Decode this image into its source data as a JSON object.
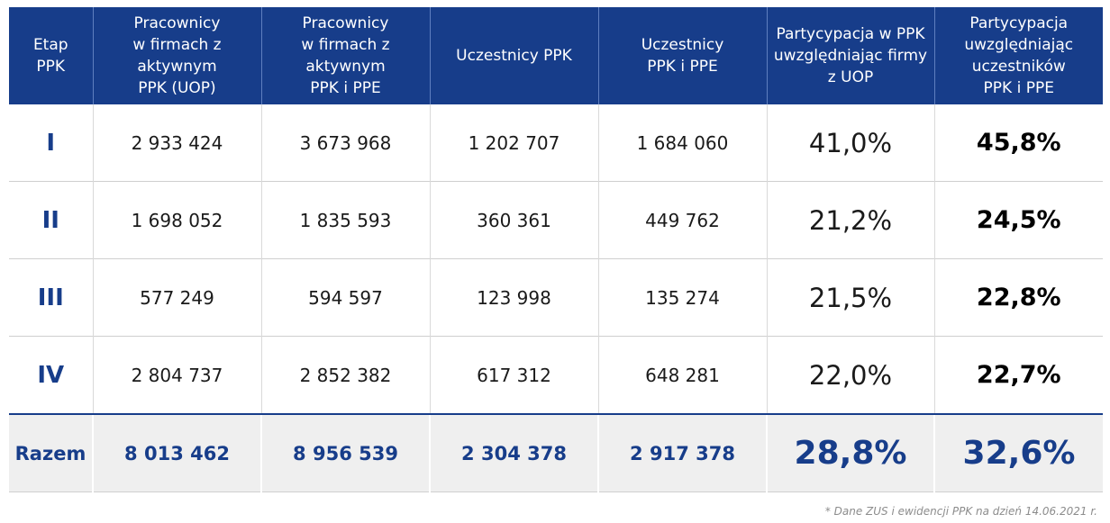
{
  "table": {
    "headers": [
      "Etap\nPPK",
      "Pracownicy\nw firmach z\naktywnym\nPPK (UOP)",
      "Pracownicy\nw firmach z\naktywnym\nPPK i PPE",
      "Uczestnicy PPK",
      "Uczestnicy\nPPK i PPE",
      "Partycypacja w PPK\nuwzględniając firmy\nz UOP",
      "Partycypacja\nuwzględniając\nuczestników\nPPK i PPE"
    ],
    "rows": [
      [
        "I",
        "2 933 424",
        "3 673 968",
        "1 202 707",
        "1 684 060",
        "41,0%",
        "45,8%"
      ],
      [
        "II",
        "1 698 052",
        "1 835 593",
        "360 361",
        "449 762",
        "21,2%",
        "24,5%"
      ],
      [
        "III",
        "577 249",
        "594 597",
        "123 998",
        "135 274",
        "21,5%",
        "22,8%"
      ],
      [
        "IV",
        "2 804 737",
        "2 852 382",
        "617 312",
        "648 281",
        "22,0%",
        "22,7%"
      ]
    ],
    "total": [
      "Razem",
      "8 013 462",
      "8 956 539",
      "2 304 378",
      "2 917 378",
      "28,8%",
      "32,6%"
    ]
  },
  "colors": {
    "header_bg": "#173d8a",
    "accent": "#173d8a",
    "total_bg": "#efefef"
  },
  "footnote": "* Dane ZUS i ewidencji PPK na dzień 14.06.2021 r."
}
